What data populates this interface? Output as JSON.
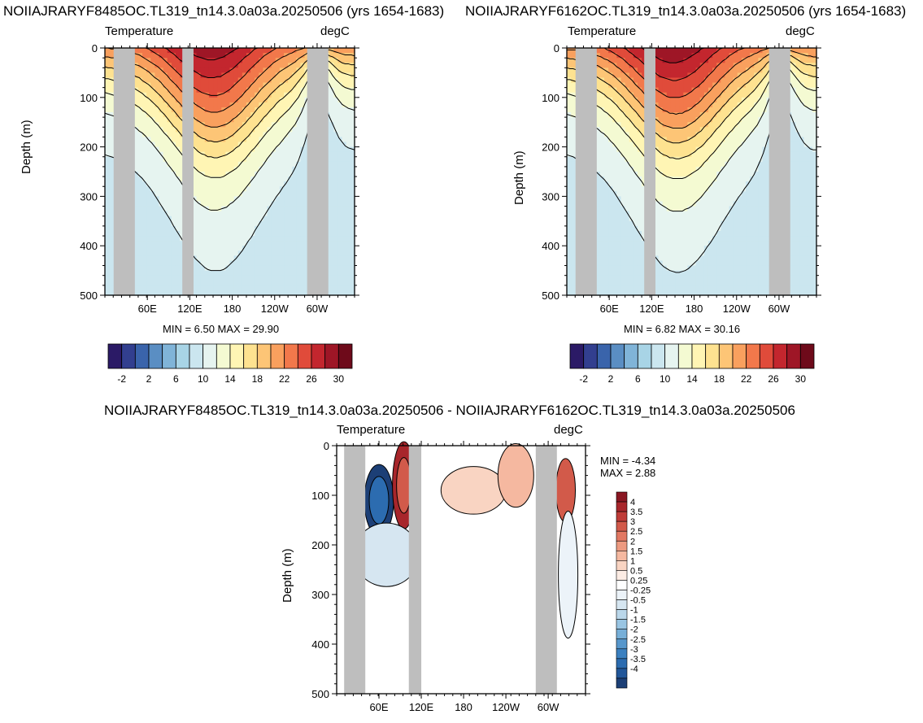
{
  "palette": {
    "temp_colors": [
      "#2b1a66",
      "#323f8f",
      "#3a64ab",
      "#5a8ec3",
      "#80b4d8",
      "#a8d4e6",
      "#cbe6ef",
      "#e6f4f0",
      "#f4fad2",
      "#fff5b4",
      "#fee290",
      "#fdc576",
      "#f9a05e",
      "#f2784b",
      "#e04b3a",
      "#c3262e",
      "#9e1626",
      "#6e0a1a"
    ],
    "diff_colors": [
      "#1c3f76",
      "#22579a",
      "#2c6cb0",
      "#3b80c0",
      "#5797cc",
      "#77afd8",
      "#99c5e3",
      "#bad7ea",
      "#d6e6f1",
      "#ecf3f9",
      "#ffffff",
      "#fcece4",
      "#f9d4c2",
      "#f5b8a0",
      "#ed9a80",
      "#e27862",
      "#d25a4a",
      "#bf3c38",
      "#a8262b",
      "#8a1722"
    ]
  },
  "panels": {
    "a": {
      "title": "NOIIAJRARYF8485OC.TL319_tn14.3.0a03a.20250506 (yrs 1654-1683)",
      "left_label": "Temperature",
      "right_label": "degC",
      "ylabel": "Depth (m)",
      "yticks": [
        "0",
        "100",
        "200",
        "300",
        "400",
        "500"
      ],
      "xticks": [
        "60E",
        "120E",
        "180",
        "120W",
        "60W"
      ],
      "stats": "MIN =   6.50  MAX =  29.90",
      "colorbar_labels": [
        "-2",
        "2",
        "6",
        "10",
        "14",
        "18",
        "22",
        "26",
        "30"
      ]
    },
    "b": {
      "title": "NOIIAJRARYF6162OC.TL319_tn14.3.0a03a.20250506 (yrs 1654-1683)",
      "left_label": "Temperature",
      "right_label": "degC",
      "ylabel": "Depth (m)",
      "yticks": [
        "0",
        "100",
        "200",
        "300",
        "400",
        "500"
      ],
      "xticks": [
        "60E",
        "120E",
        "180",
        "120W",
        "60W"
      ],
      "stats": "MIN =   6.82  MAX =  30.16",
      "colorbar_labels": [
        "-2",
        "2",
        "6",
        "10",
        "14",
        "18",
        "22",
        "26",
        "30"
      ]
    },
    "c": {
      "title": "NOIIAJRARYF8485OC.TL319_tn14.3.0a03a.20250506 - NOIIAJRARYF6162OC.TL319_tn14.3.0a03a.20250506",
      "left_label": "Temperature",
      "right_label": "degC",
      "ylabel": "Depth (m)",
      "yticks": [
        "0",
        "100",
        "200",
        "300",
        "400",
        "500"
      ],
      "xticks": [
        "60E",
        "120E",
        "180",
        "120W",
        "60W"
      ],
      "stats_min": "MIN =  -4.34",
      "stats_max": "MAX =   2.88",
      "colorbar_labels": [
        "4",
        "3.5",
        "3",
        "2.5",
        "2",
        "1.5",
        "1",
        "0.5",
        "0.25",
        "-0.25",
        "-0.5",
        "-1",
        "-1.5",
        "-2",
        "-2.5",
        "-3",
        "-3.5",
        "-4"
      ]
    }
  },
  "chart_data": [
    {
      "type": "heatmap",
      "title": "NOIIAJRARYF8485OC.TL319_tn14.3.0a03a.20250506 (yrs 1654-1683)",
      "variable": "Temperature",
      "units": "degC",
      "ylabel": "Depth (m)",
      "ylim": [
        0,
        500
      ],
      "y_reversed": true,
      "xticks": [
        "60E",
        "120E",
        "180",
        "120W",
        "60W"
      ],
      "contour_levels": [
        -2,
        0,
        2,
        4,
        6,
        8,
        10,
        12,
        14,
        16,
        18,
        20,
        22,
        24,
        26,
        28,
        30
      ],
      "colorbar_labels": [
        -2,
        2,
        6,
        10,
        14,
        18,
        22,
        26,
        30
      ],
      "min": 6.5,
      "max": 29.9
    },
    {
      "type": "heatmap",
      "title": "NOIIAJRARYF6162OC.TL319_tn14.3.0a03a.20250506 (yrs 1654-1683)",
      "variable": "Temperature",
      "units": "degC",
      "ylabel": "Depth (m)",
      "ylim": [
        0,
        500
      ],
      "y_reversed": true,
      "xticks": [
        "60E",
        "120E",
        "180",
        "120W",
        "60W"
      ],
      "contour_levels": [
        -2,
        0,
        2,
        4,
        6,
        8,
        10,
        12,
        14,
        16,
        18,
        20,
        22,
        24,
        26,
        28,
        30
      ],
      "colorbar_labels": [
        -2,
        2,
        6,
        10,
        14,
        18,
        22,
        26,
        30
      ],
      "min": 6.82,
      "max": 30.16
    },
    {
      "type": "heatmap",
      "title": "NOIIAJRARYF8485OC.TL319_tn14.3.0a03a.20250506 - NOIIAJRARYF6162OC.TL319_tn14.3.0a03a.20250506",
      "variable": "Temperature",
      "units": "degC",
      "ylabel": "Depth (m)",
      "ylim": [
        0,
        500
      ],
      "y_reversed": true,
      "xticks": [
        "60E",
        "120E",
        "180",
        "120W",
        "60W"
      ],
      "contour_levels": [
        -4,
        -3.5,
        -3,
        -2.5,
        -2,
        -1.5,
        -1,
        -0.5,
        -0.25,
        0.25,
        0.5,
        1,
        1.5,
        2,
        2.5,
        3,
        3.5,
        4
      ],
      "colorbar_labels": [
        4,
        3.5,
        3,
        2.5,
        2,
        1.5,
        1,
        0.5,
        0.25,
        -0.25,
        -0.5,
        -1,
        -1.5,
        -2,
        -2.5,
        -3,
        -3.5,
        -4
      ],
      "min": -4.34,
      "max": 2.88
    }
  ]
}
